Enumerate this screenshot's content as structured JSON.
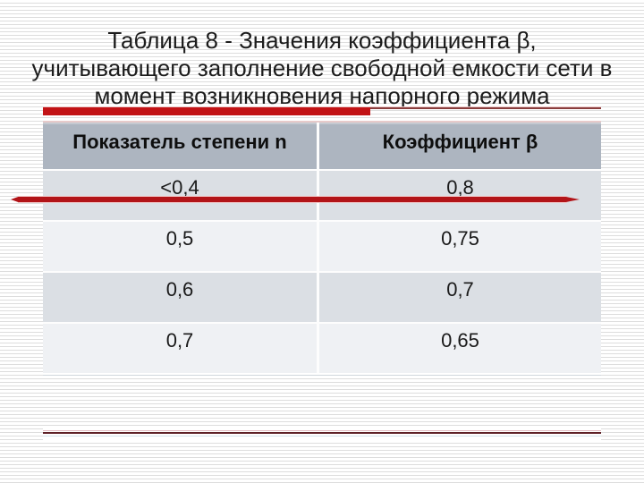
{
  "slide": {
    "title_lines": [
      "Таблица 8 - Значения коэффициента β,",
      "учитывающего заполнение свободной емкости сети в",
      "момент возникновения напорного режима"
    ]
  },
  "table": {
    "columns": [
      "Показатель степени n",
      "Коэффициент β"
    ],
    "rows": [
      {
        "n": "<0,4",
        "beta": "0,8"
      },
      {
        "n": "0,5",
        "beta": "0,75"
      },
      {
        "n": "0,6",
        "beta": "0,7"
      },
      {
        "n": "0,7",
        "beta": "0,65"
      }
    ]
  },
  "colors": {
    "accent_red_bar": "#c21316",
    "maroon_thin_line": "#8a3d3d",
    "crossing_line_red": "#b21418",
    "bottom_line_maroon": "#5f2127",
    "table_header_bg": "#adb5c0",
    "row_dark_bg": "#dbdfe4",
    "row_light_bg": "#eff1f4",
    "background_stripe": "#dddddd"
  }
}
